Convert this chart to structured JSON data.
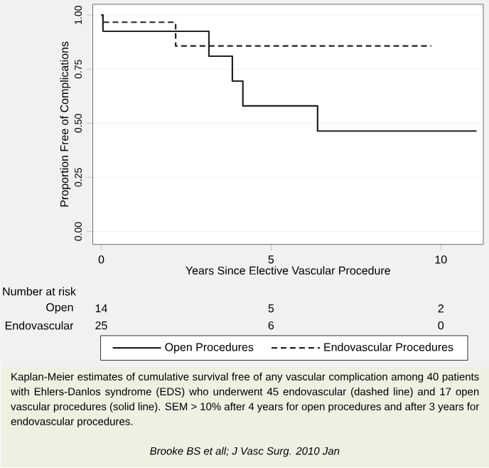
{
  "chart_data": {
    "type": "step",
    "xlabel": "Years Since Elective Vascular Procedure",
    "ylabel": "Proportion Free of Complications",
    "xlim": [
      -0.25,
      11.25
    ],
    "ylim": [
      -0.06,
      1.05
    ],
    "xticks": [
      0,
      5,
      10
    ],
    "yticks": [
      {
        "value": 0,
        "label": "0.00"
      },
      {
        "value": 0.25,
        "label": "0.25"
      },
      {
        "value": 0.5,
        "label": "0.50"
      },
      {
        "value": 0.75,
        "label": "0.75"
      },
      {
        "value": 1,
        "label": "1.00"
      }
    ],
    "grid": "y",
    "legend": "bottom",
    "series": [
      {
        "name": "Open Procedures",
        "color": "#222222",
        "line_style": "solid",
        "x": [
          0,
          0.05,
          3.17,
          3.86,
          4.17,
          6.37,
          11.05
        ],
        "values": [
          1,
          0.925,
          0.81,
          0.695,
          0.58,
          0.464,
          0.464
        ]
      },
      {
        "name": "Endovascular Procedures",
        "color": "#222222",
        "line_style": "dashed",
        "x": [
          0,
          0.05,
          2.19,
          9.72
        ],
        "values": [
          1,
          0.967,
          0.857,
          0.857
        ]
      }
    ],
    "annotations": [
      "Number at risk",
      "Open",
      "14",
      "5",
      "2",
      "Endovascular",
      "25",
      "6",
      "0",
      "Kaplan-Meier estimates of cumulative survival free of any vascular complication among 40 patients with Ehlers-Danlos syndrome (EDS) who underwent 45 endovascular (dashed line) and 17 open vascular procedures (solid line). SEM > 10% after 4 years for open procedures and after 3 years for endovascular procedures.",
      "*Brooke BS et all; J Vasc Surg. 2010 Jan*"
    ]
  }
}
